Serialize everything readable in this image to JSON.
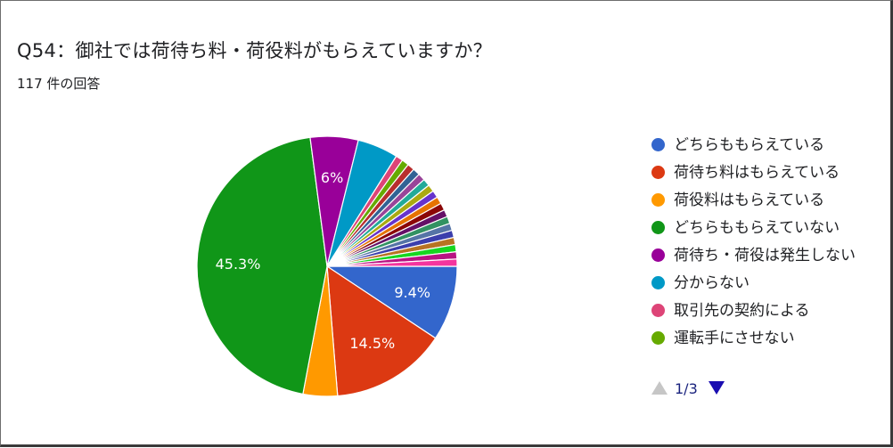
{
  "question": {
    "title": "Q54：御社では荷待ち料・荷役料がもらえていますか？",
    "response_count": "117 件の回答"
  },
  "chart_data": {
    "type": "pie",
    "slices": [
      {
        "label": "どちらももらえている",
        "value": 9.4,
        "value_label": "9.4%",
        "color": "#3366cc"
      },
      {
        "label": "荷待ち料はもらえている",
        "value": 14.5,
        "value_label": "14.5%",
        "color": "#dc3912"
      },
      {
        "label": "荷役料はもらえている",
        "value": 4.3,
        "value_label": "",
        "color": "#ff9900"
      },
      {
        "label": "どちらももらえていない",
        "value": 45.3,
        "value_label": "45.3%",
        "color": "#109618"
      },
      {
        "label": "荷待ち・荷役は発生しない",
        "value": 6.0,
        "value_label": "6%",
        "color": "#990099"
      },
      {
        "label": "分からない",
        "value": 5.1,
        "value_label": "",
        "color": "#0099c6"
      },
      {
        "label": "取引先の契約による",
        "value": 0.9,
        "value_label": "",
        "color": "#dd4477"
      },
      {
        "label": "運転手にさせない",
        "value": 0.9,
        "value_label": "",
        "color": "#66aa00"
      },
      {
        "label": "",
        "value": 0.9,
        "value_label": "",
        "color": "#b82e2e"
      },
      {
        "label": "",
        "value": 0.9,
        "value_label": "",
        "color": "#316395"
      },
      {
        "label": "",
        "value": 0.9,
        "value_label": "",
        "color": "#994499"
      },
      {
        "label": "",
        "value": 0.9,
        "value_label": "",
        "color": "#22aa99"
      },
      {
        "label": "",
        "value": 0.9,
        "value_label": "",
        "color": "#aaaa11"
      },
      {
        "label": "",
        "value": 0.9,
        "value_label": "",
        "color": "#6633cc"
      },
      {
        "label": "",
        "value": 0.9,
        "value_label": "",
        "color": "#e67300"
      },
      {
        "label": "",
        "value": 0.9,
        "value_label": "",
        "color": "#8b0707"
      },
      {
        "label": "",
        "value": 0.9,
        "value_label": "",
        "color": "#651067"
      },
      {
        "label": "",
        "value": 0.9,
        "value_label": "",
        "color": "#329262"
      },
      {
        "label": "",
        "value": 0.9,
        "value_label": "",
        "color": "#5574a6"
      },
      {
        "label": "",
        "value": 0.9,
        "value_label": "",
        "color": "#3b3eac"
      },
      {
        "label": "",
        "value": 0.9,
        "value_label": "",
        "color": "#b77322"
      },
      {
        "label": "",
        "value": 0.9,
        "value_label": "",
        "color": "#16d620"
      },
      {
        "label": "",
        "value": 0.9,
        "value_label": "",
        "color": "#b91383"
      },
      {
        "label": "",
        "value": 0.9,
        "value_label": "",
        "color": "#f4359e"
      }
    ],
    "legend_position": "right"
  },
  "legend": {
    "items": [
      {
        "label": "どちらももらえている",
        "color": "#3366cc"
      },
      {
        "label": "荷待ち料はもらえている",
        "color": "#dc3912"
      },
      {
        "label": "荷役料はもらえている",
        "color": "#ff9900"
      },
      {
        "label": "どちらももらえていない",
        "color": "#109618"
      },
      {
        "label": "荷待ち・荷役は発生しない",
        "color": "#990099"
      },
      {
        "label": "分からない",
        "color": "#0099c6"
      },
      {
        "label": "取引先の契約による",
        "color": "#dd4477"
      },
      {
        "label": "運転手にさせない",
        "color": "#66aa00"
      }
    ],
    "pager": {
      "text": "1/3",
      "prev_icon": "triangle-up-icon",
      "next_icon": "triangle-down-icon"
    }
  }
}
